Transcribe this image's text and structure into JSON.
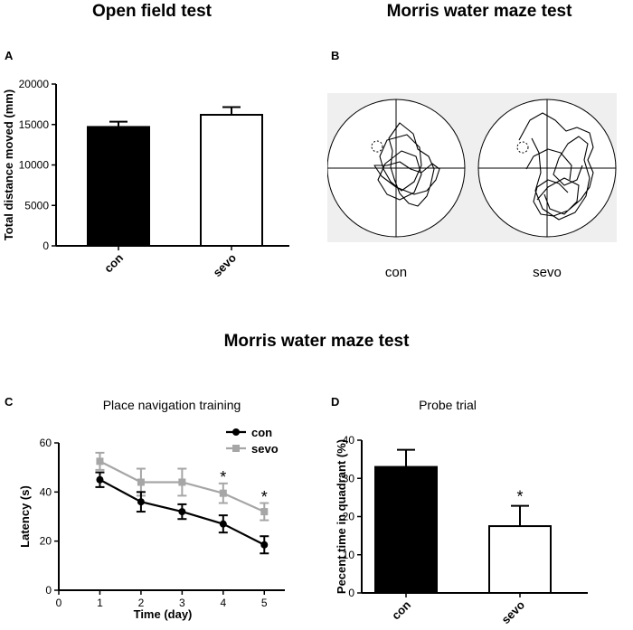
{
  "titles": {
    "open_field": "Open field test",
    "mwm_top": "Morris water maze test",
    "mwm_bottom": "Morris water maze test"
  },
  "panel_labels": {
    "a": "A",
    "b": "B",
    "c": "C",
    "d": "D"
  },
  "track_captions": {
    "con": "con",
    "sevo": "sevo"
  },
  "colors": {
    "con": "#000000",
    "sevo": "#a6a6a6",
    "track_bg": "#efefef"
  },
  "chart_data": [
    {
      "panel": "A",
      "type": "bar",
      "title": "",
      "xlabel": "",
      "ylabel": "Total distance moved (mm)",
      "categories": [
        "con",
        "sevo"
      ],
      "values": [
        14700,
        16200
      ],
      "errors": [
        650,
        950
      ],
      "fills": [
        "#000000",
        "#ffffff"
      ],
      "ylim": [
        0,
        20000
      ],
      "yticks": [
        0,
        5000,
        10000,
        15000,
        20000
      ],
      "ytick_labels": [
        "0",
        "5000",
        "10000",
        "15000",
        "20000"
      ],
      "significance": [
        "",
        ""
      ]
    },
    {
      "panel": "C",
      "type": "line",
      "title": "Place navigation training",
      "xlabel": "Time (day)",
      "ylabel": "Latency (s)",
      "x": [
        1,
        2,
        3,
        4,
        5
      ],
      "xlim": [
        0,
        5.5
      ],
      "xticks": [
        0,
        1,
        2,
        3,
        4,
        5
      ],
      "xtick_labels": [
        "0",
        "1",
        "2",
        "3",
        "4",
        "5"
      ],
      "ylim": [
        0,
        60
      ],
      "yticks": [
        0,
        20,
        40,
        60
      ],
      "ytick_labels": [
        "0",
        "20",
        "40",
        "60"
      ],
      "legend_position": "top-right",
      "series": [
        {
          "name": "con",
          "values": [
            45,
            36,
            32,
            27,
            18.5
          ],
          "errors": [
            3,
            4,
            3,
            3.5,
            3.5
          ],
          "marker": "circle",
          "color": "#000000"
        },
        {
          "name": "sevo",
          "values": [
            52.5,
            44,
            44,
            39.5,
            32
          ],
          "errors": [
            3.5,
            5.5,
            5.5,
            4,
            3.5
          ],
          "marker": "square",
          "color": "#a6a6a6"
        }
      ],
      "annotations": [
        {
          "x": 4,
          "y": 46,
          "text": "*"
        },
        {
          "x": 5,
          "y": 38,
          "text": "*"
        }
      ]
    },
    {
      "panel": "D",
      "type": "bar",
      "title": "Probe trial",
      "xlabel": "",
      "ylabel": "Pecent time in quadrant (%)",
      "categories": [
        "con",
        "sevo"
      ],
      "values": [
        33,
        17.5
      ],
      "errors": [
        4.5,
        5.3
      ],
      "fills": [
        "#000000",
        "#ffffff"
      ],
      "ylim": [
        0,
        40
      ],
      "yticks": [
        0,
        10,
        20,
        30,
        40
      ],
      "ytick_labels": [
        "0",
        "10",
        "20",
        "30",
        "40"
      ],
      "significance": [
        "",
        "*"
      ]
    }
  ]
}
